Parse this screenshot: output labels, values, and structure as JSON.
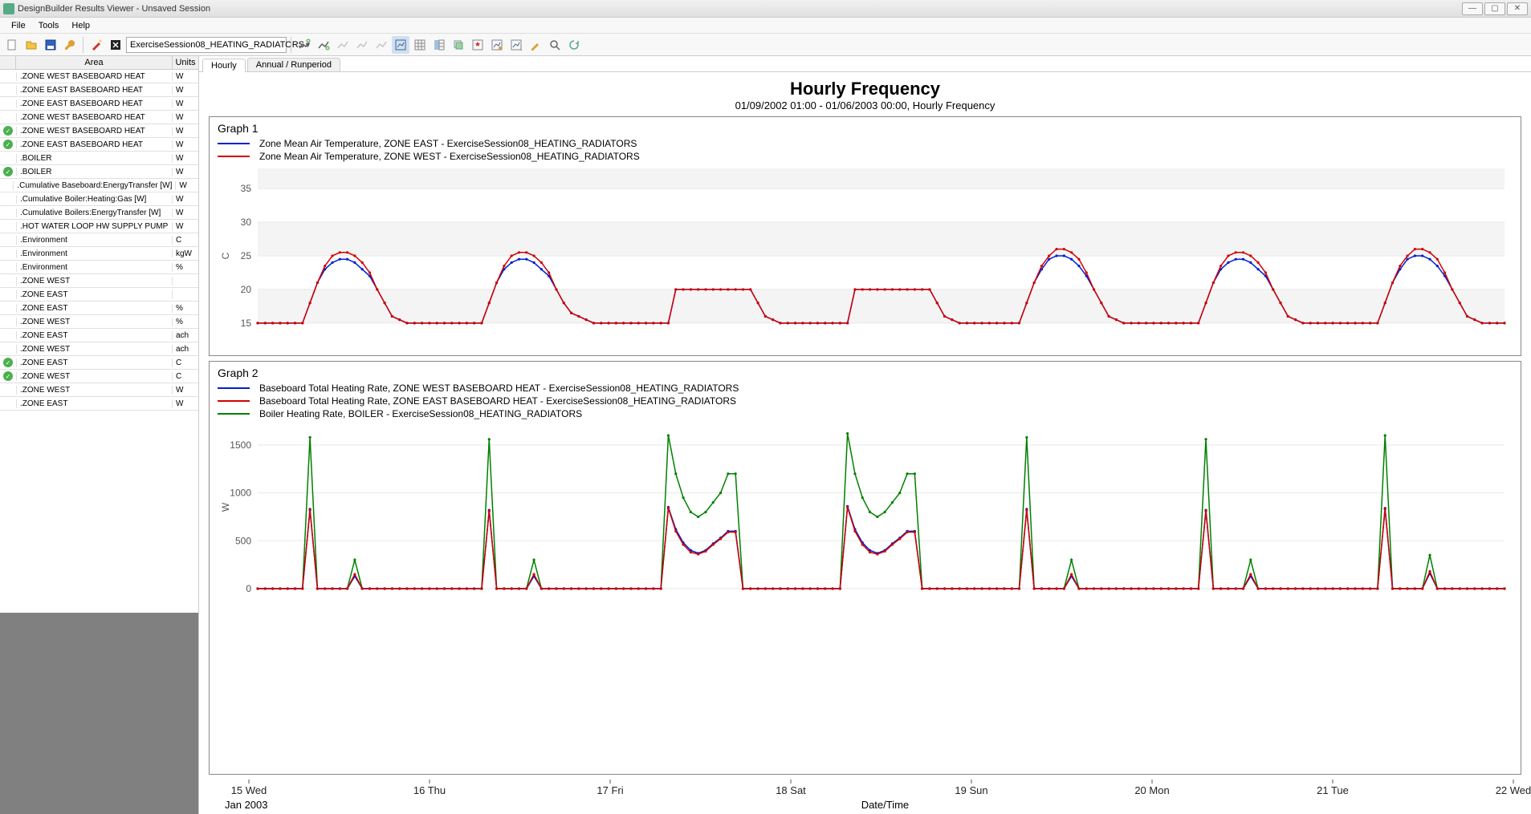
{
  "window": {
    "title": "DesignBuilder Results Viewer - Unsaved Session"
  },
  "menu": [
    "File",
    "Tools",
    "Help"
  ],
  "combo_value": "ExerciseSession08_HEATING_RADIATORS",
  "grid": {
    "headers": {
      "area": "Area",
      "units": "Units"
    },
    "rows": [
      {
        "chk": false,
        "area": ".ZONE WEST BASEBOARD HEAT",
        "u": "W"
      },
      {
        "chk": false,
        "area": ".ZONE EAST BASEBOARD HEAT",
        "u": "W"
      },
      {
        "chk": false,
        "area": ".ZONE EAST BASEBOARD HEAT",
        "u": "W"
      },
      {
        "chk": false,
        "area": ".ZONE WEST BASEBOARD HEAT",
        "u": "W"
      },
      {
        "chk": true,
        "area": ".ZONE WEST BASEBOARD HEAT",
        "u": "W"
      },
      {
        "chk": true,
        "area": ".ZONE EAST BASEBOARD HEAT",
        "u": "W"
      },
      {
        "chk": false,
        "area": ".BOILER",
        "u": "W"
      },
      {
        "chk": true,
        "area": ".BOILER",
        "u": "W"
      },
      {
        "chk": false,
        "area": ".Cumulative Baseboard:EnergyTransfer [W]",
        "u": "W"
      },
      {
        "chk": false,
        "area": ".Cumulative Boiler:Heating:Gas [W]",
        "u": "W"
      },
      {
        "chk": false,
        "area": ".Cumulative Boilers:EnergyTransfer [W]",
        "u": "W"
      },
      {
        "chk": false,
        "area": ".HOT WATER LOOP HW SUPPLY PUMP",
        "u": "W"
      },
      {
        "chk": false,
        "area": ".Environment",
        "u": "C"
      },
      {
        "chk": false,
        "area": ".Environment",
        "u": "kgW"
      },
      {
        "chk": false,
        "area": ".Environment",
        "u": "%"
      },
      {
        "chk": false,
        "area": ".ZONE WEST",
        "u": ""
      },
      {
        "chk": false,
        "area": ".ZONE EAST",
        "u": ""
      },
      {
        "chk": false,
        "area": ".ZONE EAST",
        "u": "%"
      },
      {
        "chk": false,
        "area": ".ZONE WEST",
        "u": "%"
      },
      {
        "chk": false,
        "area": ".ZONE EAST",
        "u": "ach"
      },
      {
        "chk": false,
        "area": ".ZONE WEST",
        "u": "ach"
      },
      {
        "chk": true,
        "area": ".ZONE EAST",
        "u": "C"
      },
      {
        "chk": true,
        "area": ".ZONE WEST",
        "u": "C"
      },
      {
        "chk": false,
        "area": ".ZONE WEST",
        "u": "W"
      },
      {
        "chk": false,
        "area": ".ZONE EAST",
        "u": "W"
      }
    ]
  },
  "tabs": [
    "Hourly",
    "Annual / Runperiod"
  ],
  "active_tab": 0,
  "chart": {
    "title": "Hourly Frequency",
    "subtitle": "01/09/2002 01:00 - 01/06/2003 00:00, Hourly Frequency",
    "xaxis_label": "Date/Time",
    "xaxis_period": "Jan 2003",
    "xticks": [
      "15 Wed",
      "16 Thu",
      "17 Fri",
      "18 Sat",
      "19 Sun",
      "20 Mon",
      "21 Tue",
      "22 Wed"
    ],
    "graph1": {
      "label": "Graph 1",
      "ylabel": "C",
      "ylim": [
        12,
        38
      ],
      "yticks": [
        15,
        20,
        25,
        30,
        35
      ],
      "grid_color": "#e8e8e8",
      "grid_band_color": "#f4f4f4",
      "series": [
        {
          "name": "Zone Mean Air Temperature, ZONE EAST - ExerciseSession08_HEATING_RADIATORS",
          "color": "#0020d0"
        },
        {
          "name": "Zone Mean Air Temperature, ZONE WEST - ExerciseSession08_HEATING_RADIATORS",
          "color": "#d00000"
        }
      ],
      "data_east": [
        15,
        15,
        15,
        15,
        15,
        15,
        15,
        18,
        21,
        23,
        24,
        24.5,
        24.5,
        24,
        23,
        22,
        20,
        18,
        16,
        15.5,
        15,
        15,
        15,
        15,
        15,
        15,
        15,
        15,
        15,
        15,
        15,
        18,
        21,
        23,
        24,
        24.5,
        24.5,
        24,
        23,
        22,
        20,
        18,
        16.5,
        16,
        15.5,
        15,
        15,
        15,
        15,
        15,
        15,
        15,
        15,
        15,
        15,
        15,
        20,
        20,
        20,
        20,
        20,
        20,
        20,
        20,
        20,
        20,
        20,
        18,
        16,
        15.5,
        15,
        15,
        15,
        15,
        15,
        15,
        15,
        15,
        15,
        15,
        20,
        20,
        20,
        20,
        20,
        20,
        20,
        20,
        20,
        20,
        20,
        18,
        16,
        15.5,
        15,
        15,
        15,
        15,
        15,
        15,
        15,
        15,
        15,
        18,
        21,
        23,
        24.5,
        25,
        25,
        24.5,
        23.5,
        22,
        20,
        18,
        16,
        15.5,
        15,
        15,
        15,
        15,
        15,
        15,
        15,
        15,
        15,
        15,
        15,
        18,
        21,
        23,
        24,
        24.5,
        24.5,
        24,
        23,
        22,
        20,
        18,
        16,
        15.5,
        15,
        15,
        15,
        15,
        15,
        15,
        15,
        15,
        15,
        15,
        15,
        18,
        21,
        23,
        24.5,
        25,
        25,
        24.5,
        23.5,
        22,
        20,
        18,
        16,
        15.5,
        15,
        15,
        15,
        15
      ],
      "data_west": [
        15,
        15,
        15,
        15,
        15,
        15,
        15,
        18,
        21,
        23.5,
        25,
        25.5,
        25.5,
        25,
        24,
        22.5,
        20,
        18,
        16,
        15.5,
        15,
        15,
        15,
        15,
        15,
        15,
        15,
        15,
        15,
        15,
        15,
        18,
        21,
        23.5,
        25,
        25.5,
        25.5,
        25,
        24,
        22.5,
        20,
        18,
        16.5,
        16,
        15.5,
        15,
        15,
        15,
        15,
        15,
        15,
        15,
        15,
        15,
        15,
        15,
        20,
        20,
        20,
        20,
        20,
        20,
        20,
        20,
        20,
        20,
        20,
        18,
        16,
        15.5,
        15,
        15,
        15,
        15,
        15,
        15,
        15,
        15,
        15,
        15,
        20,
        20,
        20,
        20,
        20,
        20,
        20,
        20,
        20,
        20,
        20,
        18,
        16,
        15.5,
        15,
        15,
        15,
        15,
        15,
        15,
        15,
        15,
        15,
        18,
        21,
        23.5,
        25,
        26,
        26,
        25.5,
        24.5,
        22.5,
        20,
        18,
        16,
        15.5,
        15,
        15,
        15,
        15,
        15,
        15,
        15,
        15,
        15,
        15,
        15,
        18,
        21,
        23.5,
        25,
        25.5,
        25.5,
        25,
        24,
        22.5,
        20,
        18,
        16,
        15.5,
        15,
        15,
        15,
        15,
        15,
        15,
        15,
        15,
        15,
        15,
        15,
        18,
        21,
        23.5,
        25,
        26,
        26,
        25.5,
        24.5,
        22.5,
        20,
        18,
        16,
        15.5,
        15,
        15,
        15,
        15
      ]
    },
    "graph2": {
      "label": "Graph 2",
      "ylabel": "W",
      "ylim": [
        0,
        1700
      ],
      "yticks": [
        0,
        500,
        1000,
        1500
      ],
      "series": [
        {
          "name": "Baseboard Total Heating Rate, ZONE WEST BASEBOARD HEAT - ExerciseSession08_HEATING_RADIATORS",
          "color": "#0020d0"
        },
        {
          "name": "Baseboard Total Heating Rate, ZONE EAST BASEBOARD HEAT - ExerciseSession08_HEATING_RADIATORS",
          "color": "#d00000"
        },
        {
          "name": "Boiler Heating Rate, BOILER - ExerciseSession08_HEATING_RADIATORS",
          "color": "#008000"
        }
      ],
      "data_boiler": [
        0,
        0,
        0,
        0,
        0,
        0,
        0,
        1580,
        0,
        0,
        0,
        0,
        0,
        300,
        0,
        0,
        0,
        0,
        0,
        0,
        0,
        0,
        0,
        0,
        0,
        0,
        0,
        0,
        0,
        0,
        0,
        1560,
        0,
        0,
        0,
        0,
        0,
        300,
        0,
        0,
        0,
        0,
        0,
        0,
        0,
        0,
        0,
        0,
        0,
        0,
        0,
        0,
        0,
        0,
        0,
        1600,
        1200,
        950,
        800,
        750,
        800,
        900,
        1000,
        1200,
        1200,
        0,
        0,
        0,
        0,
        0,
        0,
        0,
        0,
        0,
        0,
        0,
        0,
        0,
        0,
        1620,
        1200,
        950,
        800,
        750,
        800,
        900,
        1000,
        1200,
        1200,
        0,
        0,
        0,
        0,
        0,
        0,
        0,
        0,
        0,
        0,
        0,
        0,
        0,
        0,
        1580,
        0,
        0,
        0,
        0,
        0,
        300,
        0,
        0,
        0,
        0,
        0,
        0,
        0,
        0,
        0,
        0,
        0,
        0,
        0,
        0,
        0,
        0,
        0,
        1560,
        0,
        0,
        0,
        0,
        0,
        300,
        0,
        0,
        0,
        0,
        0,
        0,
        0,
        0,
        0,
        0,
        0,
        0,
        0,
        0,
        0,
        0,
        0,
        1600,
        0,
        0,
        0,
        0,
        0,
        350,
        0,
        0,
        0,
        0,
        0,
        0,
        0,
        0,
        0,
        0
      ],
      "data_westbb": [
        0,
        0,
        0,
        0,
        0,
        0,
        0,
        830,
        0,
        0,
        0,
        0,
        0,
        130,
        0,
        0,
        0,
        0,
        0,
        0,
        0,
        0,
        0,
        0,
        0,
        0,
        0,
        0,
        0,
        0,
        0,
        820,
        0,
        0,
        0,
        0,
        0,
        130,
        0,
        0,
        0,
        0,
        0,
        0,
        0,
        0,
        0,
        0,
        0,
        0,
        0,
        0,
        0,
        0,
        0,
        850,
        620,
        480,
        400,
        370,
        400,
        470,
        530,
        600,
        600,
        0,
        0,
        0,
        0,
        0,
        0,
        0,
        0,
        0,
        0,
        0,
        0,
        0,
        0,
        860,
        620,
        480,
        400,
        370,
        400,
        470,
        530,
        600,
        600,
        0,
        0,
        0,
        0,
        0,
        0,
        0,
        0,
        0,
        0,
        0,
        0,
        0,
        0,
        830,
        0,
        0,
        0,
        0,
        0,
        130,
        0,
        0,
        0,
        0,
        0,
        0,
        0,
        0,
        0,
        0,
        0,
        0,
        0,
        0,
        0,
        0,
        0,
        820,
        0,
        0,
        0,
        0,
        0,
        130,
        0,
        0,
        0,
        0,
        0,
        0,
        0,
        0,
        0,
        0,
        0,
        0,
        0,
        0,
        0,
        0,
        0,
        840,
        0,
        0,
        0,
        0,
        0,
        160,
        0,
        0,
        0,
        0,
        0,
        0,
        0,
        0,
        0,
        0
      ],
      "data_eastbb": [
        0,
        0,
        0,
        0,
        0,
        0,
        0,
        820,
        0,
        0,
        0,
        0,
        0,
        150,
        0,
        0,
        0,
        0,
        0,
        0,
        0,
        0,
        0,
        0,
        0,
        0,
        0,
        0,
        0,
        0,
        0,
        810,
        0,
        0,
        0,
        0,
        0,
        150,
        0,
        0,
        0,
        0,
        0,
        0,
        0,
        0,
        0,
        0,
        0,
        0,
        0,
        0,
        0,
        0,
        0,
        840,
        600,
        460,
        380,
        360,
        390,
        460,
        520,
        590,
        590,
        0,
        0,
        0,
        0,
        0,
        0,
        0,
        0,
        0,
        0,
        0,
        0,
        0,
        0,
        850,
        600,
        460,
        380,
        360,
        390,
        460,
        520,
        590,
        590,
        0,
        0,
        0,
        0,
        0,
        0,
        0,
        0,
        0,
        0,
        0,
        0,
        0,
        0,
        820,
        0,
        0,
        0,
        0,
        0,
        150,
        0,
        0,
        0,
        0,
        0,
        0,
        0,
        0,
        0,
        0,
        0,
        0,
        0,
        0,
        0,
        0,
        0,
        810,
        0,
        0,
        0,
        0,
        0,
        150,
        0,
        0,
        0,
        0,
        0,
        0,
        0,
        0,
        0,
        0,
        0,
        0,
        0,
        0,
        0,
        0,
        0,
        830,
        0,
        0,
        0,
        0,
        0,
        180,
        0,
        0,
        0,
        0,
        0,
        0,
        0,
        0,
        0,
        0
      ]
    }
  }
}
